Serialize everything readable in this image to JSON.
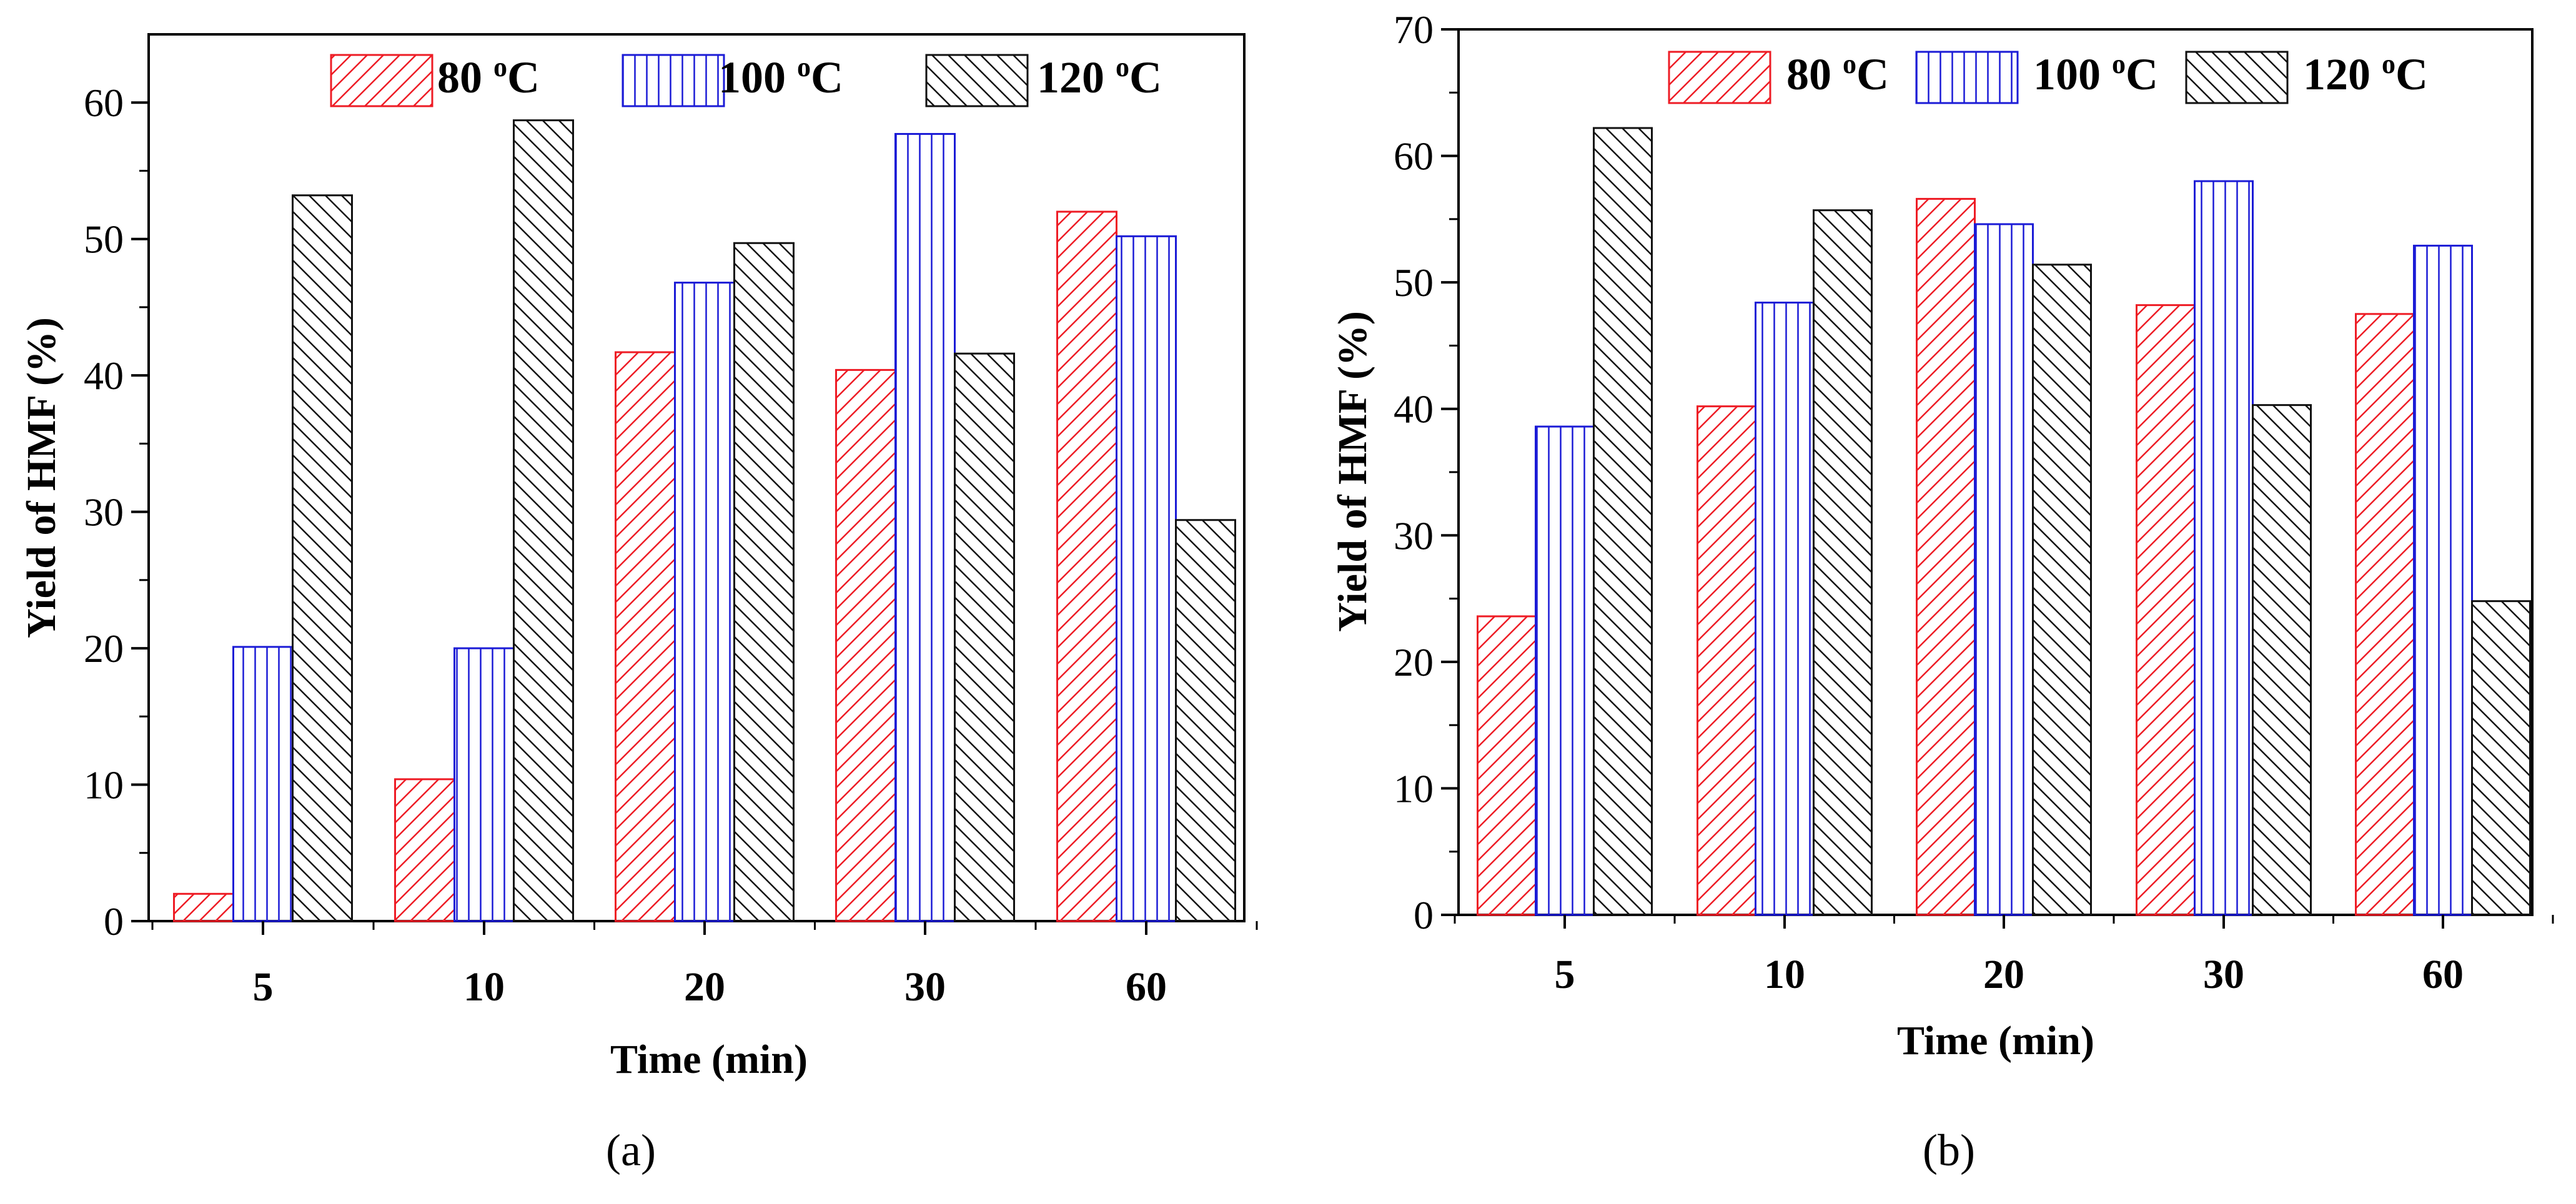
{
  "colors": {
    "red": "#ee1c25",
    "blue": "#1b1bd6",
    "black": "#111111"
  },
  "chart_data": [
    {
      "type": "bar",
      "panel_label": "(a)",
      "title": "",
      "xlabel": "Time (min)",
      "ylabel": "Yield of HMF (%)",
      "ylim": [
        0,
        65
      ],
      "yticks": [
        0,
        10,
        20,
        30,
        40,
        50,
        60
      ],
      "categories": [
        "5",
        "10",
        "20",
        "30",
        "60"
      ],
      "legend": "top",
      "series": [
        {
          "name": "80 oC",
          "label": "80",
          "unit": "C",
          "color": "#ee1c25",
          "pattern": "diag-up",
          "values": [
            2.0,
            10.4,
            41.7,
            40.4,
            52.0
          ]
        },
        {
          "name": "100 oC",
          "label": "100",
          "unit": "C",
          "color": "#1b1bd6",
          "pattern": "vertical",
          "values": [
            20.1,
            20.0,
            46.8,
            57.7,
            50.2
          ]
        },
        {
          "name": "120 oC",
          "label": "120",
          "unit": "C",
          "color": "#111111",
          "pattern": "diag-down",
          "values": [
            53.2,
            58.7,
            49.7,
            41.6,
            29.4
          ]
        }
      ]
    },
    {
      "type": "bar",
      "panel_label": "(b)",
      "title": "",
      "xlabel": "Time (min)",
      "ylabel": "Yield of HMF (%)",
      "ylim": [
        0,
        70
      ],
      "yticks": [
        0,
        10,
        20,
        30,
        40,
        50,
        60,
        70
      ],
      "categories": [
        "5",
        "10",
        "20",
        "30",
        "60"
      ],
      "legend": "top",
      "series": [
        {
          "name": "80 oC",
          "label": "80",
          "unit": "C",
          "color": "#ee1c25",
          "pattern": "diag-up",
          "values": [
            23.6,
            40.2,
            56.6,
            48.2,
            47.5
          ]
        },
        {
          "name": "100 oC",
          "label": "100",
          "unit": "C",
          "color": "#1b1bd6",
          "pattern": "vertical",
          "values": [
            38.6,
            48.4,
            54.6,
            58.0,
            52.9
          ]
        },
        {
          "name": "120 oC",
          "label": "120",
          "unit": "C",
          "color": "#111111",
          "pattern": "diag-down",
          "values": [
            62.2,
            55.7,
            51.4,
            40.3,
            24.8
          ]
        }
      ]
    }
  ]
}
